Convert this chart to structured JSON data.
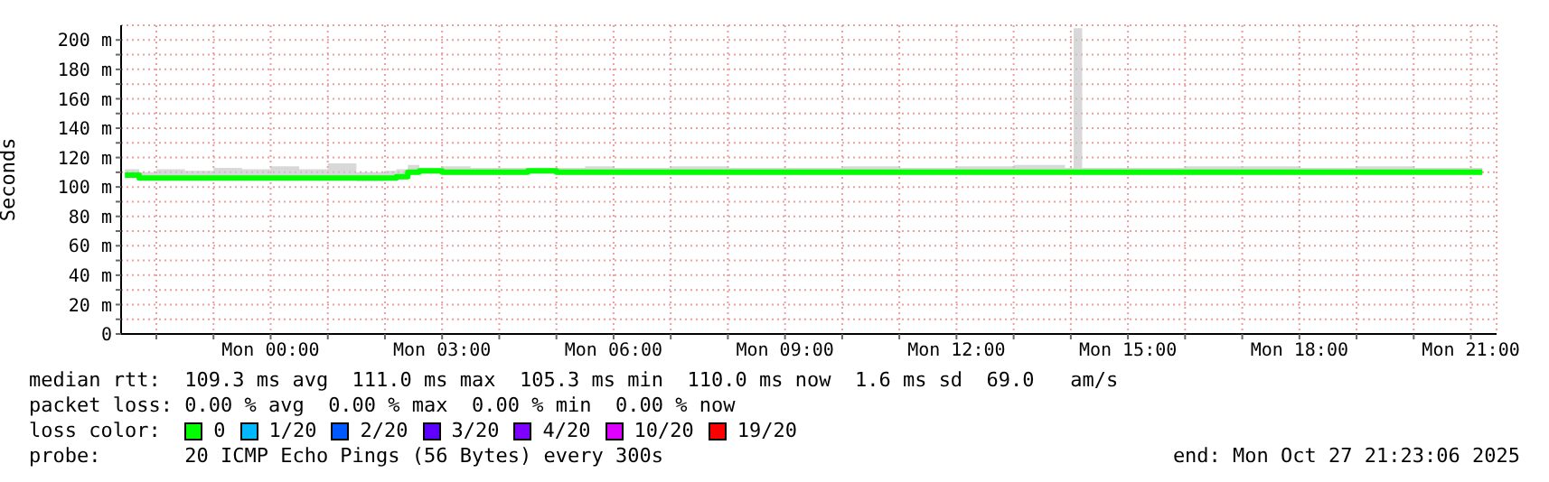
{
  "chart_data": {
    "type": "line",
    "ylabel": "Seconds",
    "x": [
      "2025-10-26T21:27",
      "2025-10-26T21:42",
      "2025-10-26T22:00",
      "2025-10-26T22:30",
      "2025-10-26T23:00",
      "2025-10-26T23:30",
      "2025-10-27T00:00",
      "2025-10-27T00:30",
      "2025-10-27T01:00",
      "2025-10-27T01:30",
      "2025-10-27T02:00",
      "2025-10-27T02:12",
      "2025-10-27T02:24",
      "2025-10-27T02:36",
      "2025-10-27T03:00",
      "2025-10-27T03:30",
      "2025-10-27T04:00",
      "2025-10-27T04:30",
      "2025-10-27T05:00",
      "2025-10-27T05:30",
      "2025-10-27T06:00",
      "2025-10-27T07:00",
      "2025-10-27T08:00",
      "2025-10-27T09:00",
      "2025-10-27T10:00",
      "2025-10-27T11:00",
      "2025-10-27T12:00",
      "2025-10-27T13:00",
      "2025-10-27T13:54",
      "2025-10-27T14:03",
      "2025-10-27T14:12",
      "2025-10-27T15:00",
      "2025-10-27T16:00",
      "2025-10-27T17:00",
      "2025-10-27T18:00",
      "2025-10-27T19:00",
      "2025-10-27T20:00",
      "2025-10-27T21:00",
      "2025-10-27T21:12"
    ],
    "series": [
      {
        "color": "#00ff00",
        "values": [
          108,
          106,
          106,
          106,
          106,
          106,
          106,
          106,
          106,
          106,
          106,
          107,
          110,
          111,
          110,
          110,
          110,
          111,
          110,
          110,
          110,
          110,
          110,
          110,
          110,
          110,
          110,
          110,
          110,
          110,
          110,
          110,
          110,
          110,
          110,
          110,
          110,
          110,
          110
        ],
        "lower": [
          106,
          105,
          105,
          105,
          105,
          105,
          105,
          105,
          105,
          104,
          105,
          105,
          108,
          109,
          108,
          108,
          108,
          109,
          108,
          108,
          108,
          108,
          108,
          108,
          108,
          108,
          108,
          108,
          108,
          108,
          108,
          108,
          108,
          108,
          108,
          108,
          108,
          108,
          108
        ],
        "upper": [
          112,
          110,
          112,
          111,
          113,
          112,
          114,
          112,
          116,
          110,
          111,
          112,
          115,
          113,
          114,
          113,
          113,
          113,
          113,
          114,
          113,
          114,
          113,
          113,
          114,
          113,
          114,
          115,
          113,
          208,
          113,
          113,
          114,
          114,
          113,
          114,
          113,
          113,
          113
        ]
      }
    ],
    "xlim": [
      "2025-10-26T21:23",
      "2025-10-27T21:27"
    ],
    "xticks": [
      {
        "value": "2025-10-26T22:00",
        "label": null
      },
      {
        "value": "2025-10-26T23:00",
        "label": null
      },
      {
        "value": "2025-10-27T00:00",
        "label": "Mon 00:00"
      },
      {
        "value": "2025-10-27T01:00",
        "label": null
      },
      {
        "value": "2025-10-27T02:00",
        "label": null
      },
      {
        "value": "2025-10-27T03:00",
        "label": "Mon 03:00"
      },
      {
        "value": "2025-10-27T04:00",
        "label": null
      },
      {
        "value": "2025-10-27T05:00",
        "label": null
      },
      {
        "value": "2025-10-27T06:00",
        "label": "Mon 06:00"
      },
      {
        "value": "2025-10-27T07:00",
        "label": null
      },
      {
        "value": "2025-10-27T08:00",
        "label": null
      },
      {
        "value": "2025-10-27T09:00",
        "label": "Mon 09:00"
      },
      {
        "value": "2025-10-27T10:00",
        "label": null
      },
      {
        "value": "2025-10-27T11:00",
        "label": null
      },
      {
        "value": "2025-10-27T12:00",
        "label": "Mon 12:00"
      },
      {
        "value": "2025-10-27T13:00",
        "label": null
      },
      {
        "value": "2025-10-27T14:00",
        "label": null
      },
      {
        "value": "2025-10-27T15:00",
        "label": "Mon 15:00"
      },
      {
        "value": "2025-10-27T16:00",
        "label": null
      },
      {
        "value": "2025-10-27T17:00",
        "label": null
      },
      {
        "value": "2025-10-27T18:00",
        "label": "Mon 18:00"
      },
      {
        "value": "2025-10-27T19:00",
        "label": null
      },
      {
        "value": "2025-10-27T20:00",
        "label": null
      },
      {
        "value": "2025-10-27T21:00",
        "label": "Mon 21:00"
      }
    ],
    "ylim": [
      0,
      210
    ],
    "yticks": [
      0,
      {
        "value": 10,
        "label": null
      },
      {
        "value": 20,
        "label": "20 m"
      },
      {
        "value": 30,
        "label": null
      },
      {
        "value": 40,
        "label": "40 m"
      },
      {
        "value": 50,
        "label": null
      },
      {
        "value": 60,
        "label": "60 m"
      },
      {
        "value": 70,
        "label": null
      },
      {
        "value": 80,
        "label": "80 m"
      },
      {
        "value": 90,
        "label": null
      },
      {
        "value": 100,
        "label": "100 m"
      },
      {
        "value": 110,
        "label": null
      },
      {
        "value": 120,
        "label": "120 m"
      },
      {
        "value": 130,
        "label": null
      },
      {
        "value": 140,
        "label": "140 m"
      },
      {
        "value": 150,
        "label": null
      },
      {
        "value": 160,
        "label": "160 m"
      },
      {
        "value": 170,
        "label": null
      },
      {
        "value": 180,
        "label": "180 m"
      },
      {
        "value": 190,
        "label": null
      },
      {
        "value": 200,
        "label": "200 m"
      }
    ],
    "grid": true,
    "marker": "none",
    "line_style": "solid",
    "annotations": [
      "median rtt:  109.3 ms avg  111.0 ms max  105.3 ms min  110.0 ms now  1.6 ms sd  69.0   am/s",
      "packet loss: 0.00 % avg  0.00 % max  0.00 % min  0.00 % now",
      "probe:       20 ICMP Echo Pings (56 Bytes) every 300s",
      "end: Mon Oct 27 21:23:06 2025",
      "loss color:",
      "0",
      "1/20",
      "2/20",
      "3/20",
      "4/20",
      "10/20",
      "19/20"
    ]
  }
}
